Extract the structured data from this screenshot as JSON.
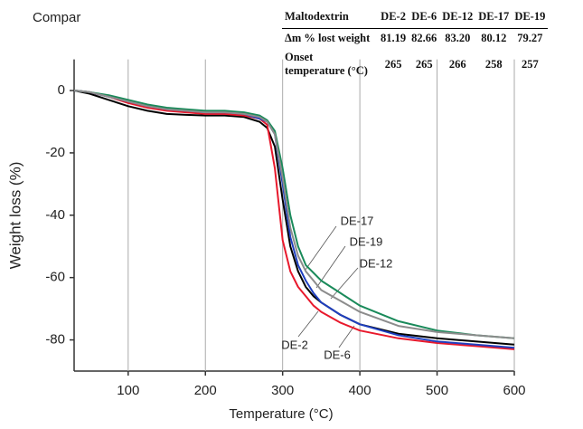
{
  "chart_data": {
    "type": "line",
    "title": "Compar",
    "x_label": "Temperature (°C)",
    "y_label": "Weight loss (%)",
    "x": [
      30,
      50,
      75,
      100,
      125,
      150,
      175,
      200,
      225,
      250,
      270,
      280,
      290,
      300,
      310,
      320,
      330,
      340,
      350,
      375,
      400,
      450,
      500,
      550,
      600
    ],
    "series": [
      {
        "name": "DE-2",
        "color": "#000000",
        "values": [
          0,
          -1,
          -3,
          -5,
          -6.5,
          -7.5,
          -7.8,
          -8,
          -8,
          -8.5,
          -10,
          -12,
          -18,
          -35,
          -50,
          -58,
          -63,
          -66,
          -68,
          -72,
          -75,
          -78,
          -79.5,
          -80.5,
          -81.5
        ]
      },
      {
        "name": "DE-6",
        "color": "#e8192c",
        "values": [
          0,
          -0.5,
          -2,
          -4,
          -5.5,
          -6.5,
          -7,
          -7.5,
          -7.5,
          -8,
          -9,
          -11,
          -25,
          -48,
          -58,
          -63,
          -66,
          -69,
          -71,
          -74.5,
          -77,
          -79.5,
          -81,
          -82,
          -83
        ]
      },
      {
        "name": "DE-12",
        "color": "#1f3fbf",
        "values": [
          0,
          -0.5,
          -2,
          -3.5,
          -5,
          -6,
          -6.5,
          -7,
          -7,
          -7.5,
          -9,
          -10,
          -14,
          -30,
          -47,
          -56,
          -61,
          -65,
          -68,
          -72,
          -75,
          -78.5,
          -80.5,
          -81.5,
          -82.5
        ]
      },
      {
        "name": "DE-17",
        "color": "#1a8a5a",
        "values": [
          0,
          -0.5,
          -1.5,
          -3,
          -4.5,
          -5.5,
          -6,
          -6.5,
          -6.5,
          -7,
          -8,
          -9.5,
          -13,
          -25,
          -40,
          -50,
          -56,
          -58.5,
          -61,
          -65,
          -69,
          -74,
          -77,
          -78.5,
          -79.5
        ]
      },
      {
        "name": "DE-19",
        "color": "#8c8c8c",
        "values": [
          0,
          -0.5,
          -2,
          -3.5,
          -5,
          -6,
          -6.5,
          -7,
          -7,
          -7.5,
          -8.5,
          -10,
          -14,
          -28,
          -44,
          -53,
          -58,
          -61,
          -64,
          -67.5,
          -71,
          -75.5,
          -77.5,
          -78.5,
          -79.5
        ]
      }
    ],
    "xlim": [
      30,
      600
    ],
    "ylim": [
      -90,
      10
    ],
    "xticks": [
      100,
      200,
      300,
      400,
      500,
      600
    ],
    "yticks": [
      0,
      -20,
      -40,
      -60,
      -80
    ],
    "grid": true,
    "table": {
      "header": [
        "Maltodextrin",
        "DE-2",
        "DE-6",
        "DE-12",
        "DE-17",
        "DE-19"
      ],
      "rows": [
        [
          "Δm % lost weight",
          "81.19",
          "82.66",
          "83.20",
          "80.12",
          "79.27"
        ],
        [
          "Onset temperature (°C)",
          "265",
          "265",
          "266",
          "258",
          "257"
        ]
      ]
    }
  }
}
